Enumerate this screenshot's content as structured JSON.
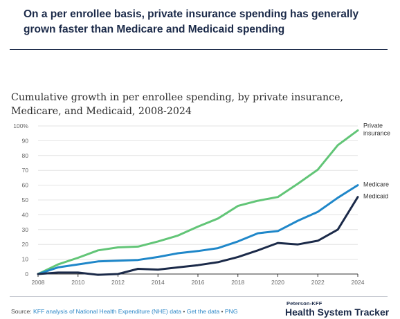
{
  "headline": "On a per enrollee basis, private insurance spending has generally grown faster than Medicare and Medicaid spending",
  "footer": {
    "source_prefix": "Source: ",
    "source_link": "KFF analysis of National Health Expenditure (NHE) data",
    "sep1": " • ",
    "get_data": "Get the data",
    "sep2": " • ",
    "png": "PNG",
    "brand_small": "Peterson-KFF",
    "brand_big": "Health System Tracker"
  },
  "colors": {
    "private": "#62c577",
    "medicare": "#1f87c9",
    "medicaid": "#1b2a49",
    "grid": "#e3e3e3",
    "axis": "#333333",
    "tick_text": "#666666"
  },
  "chart_data": {
    "type": "line",
    "title": "Cumulative growth in per enrollee spending, by private insurance, Medicare, and Medicaid, 2008-2024",
    "xlabel": "",
    "ylabel": "",
    "x": [
      2008,
      2009,
      2010,
      2011,
      2012,
      2013,
      2014,
      2015,
      2016,
      2017,
      2018,
      2019,
      2020,
      2021,
      2022,
      2023,
      2024
    ],
    "xlim": [
      2008,
      2024
    ],
    "ylim": [
      0,
      100
    ],
    "x_ticks": [
      2008,
      2010,
      2012,
      2014,
      2016,
      2018,
      2020,
      2022,
      2024
    ],
    "y_ticks": [
      0,
      10,
      20,
      30,
      40,
      50,
      60,
      70,
      80,
      90,
      100
    ],
    "y_tick_labels": [
      "0",
      "10",
      "20",
      "30",
      "40",
      "50",
      "60",
      "70",
      "80",
      "90",
      "100%"
    ],
    "grid": true,
    "legend": "end-of-line labels",
    "series": [
      {
        "name": "Private insurance",
        "label_lines": [
          "Private",
          "insurance"
        ],
        "color": "#62c577",
        "values": [
          0,
          6.5,
          11,
          16,
          18,
          18.5,
          22,
          26,
          32,
          37.5,
          46,
          49.5,
          52,
          61,
          70.5,
          87,
          97
        ]
      },
      {
        "name": "Medicare",
        "label_lines": [
          "Medicare"
        ],
        "color": "#1f87c9",
        "values": [
          0,
          4.5,
          6.5,
          8.5,
          9,
          9.5,
          11.5,
          14,
          15.5,
          17.5,
          22,
          27.5,
          29,
          36,
          42,
          51.5,
          60
        ]
      },
      {
        "name": "Medicaid",
        "label_lines": [
          "Medicaid"
        ],
        "color": "#1b2a49",
        "values": [
          0,
          1,
          1,
          -0.5,
          0,
          3.5,
          3,
          4.5,
          6,
          8,
          11.5,
          16,
          21,
          20,
          22.5,
          30,
          52
        ]
      }
    ]
  }
}
